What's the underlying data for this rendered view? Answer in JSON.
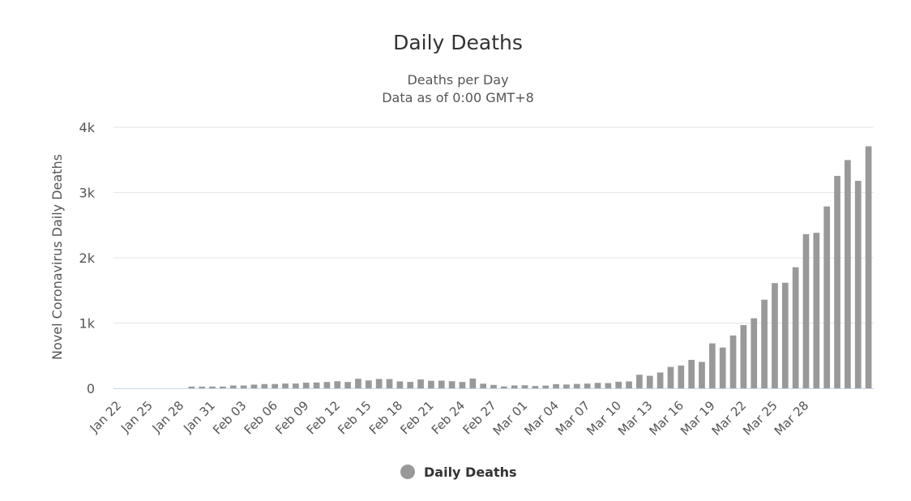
{
  "chart_data": {
    "type": "bar",
    "title": "Daily Deaths",
    "subtitle": [
      "Deaths per Day",
      "Data as of 0:00 GMT+8"
    ],
    "ylabel": "Novel Coronavirus Daily Deaths",
    "xlabel": "",
    "ylim": [
      0,
      4000
    ],
    "yticks": [
      0,
      1000,
      2000,
      3000,
      4000
    ],
    "ytick_labels": [
      "0",
      "1k",
      "2k",
      "3k",
      "4k"
    ],
    "grid": true,
    "legend_position": "bottom-center",
    "series": [
      {
        "name": "Daily Deaths",
        "color": "#999999",
        "values": [
          0,
          0,
          0,
          0,
          0,
          0,
          0,
          26,
          26,
          26,
          26,
          43,
          43,
          57,
          65,
          66,
          73,
          73,
          86,
          89,
          97,
          108,
          97,
          146,
          121,
          143,
          142,
          106,
          98,
          136,
          115,
          118,
          109,
          97,
          150,
          71,
          52,
          29,
          44,
          47,
          35,
          42,
          64,
          58,
          67,
          72,
          84,
          80,
          101,
          106,
          208,
          192,
          243,
          328,
          349,
          436,
          405,
          689,
          625,
          810,
          970,
          1073,
          1358,
          1612,
          1618,
          1855,
          2362,
          2383,
          2787,
          3255,
          3498,
          3179,
          3709
        ]
      }
    ],
    "categories": [
      "Jan 22",
      "Jan 23",
      "Jan 24",
      "Jan 25",
      "Jan 26",
      "Jan 27",
      "Jan 28",
      "Jan 29",
      "Jan 30",
      "Jan 31",
      "Feb 01",
      "Feb 02",
      "Feb 03",
      "Feb 04",
      "Feb 05",
      "Feb 06",
      "Feb 07",
      "Feb 08",
      "Feb 09",
      "Feb 10",
      "Feb 11",
      "Feb 12",
      "Feb 13",
      "Feb 14",
      "Feb 15",
      "Feb 16",
      "Feb 17",
      "Feb 18",
      "Feb 19",
      "Feb 20",
      "Feb 21",
      "Feb 22",
      "Feb 23",
      "Feb 24",
      "Feb 25",
      "Feb 26",
      "Feb 27",
      "Feb 28",
      "Feb 29",
      "Mar 01",
      "Mar 02",
      "Mar 03",
      "Mar 04",
      "Mar 05",
      "Mar 06",
      "Mar 07",
      "Mar 08",
      "Mar 09",
      "Mar 10",
      "Mar 11",
      "Mar 12",
      "Mar 13",
      "Mar 14",
      "Mar 15",
      "Mar 16",
      "Mar 17",
      "Mar 18",
      "Mar 19",
      "Mar 20",
      "Mar 21",
      "Mar 22",
      "Mar 23",
      "Mar 24",
      "Mar 25",
      "Mar 26",
      "Mar 27",
      "Mar 28",
      "Mar 29",
      "Mar 30",
      "Mar 31",
      "Apr 01",
      "Apr 02",
      "Apr 03"
    ],
    "xtick_labels": [
      "Jan 22",
      "Jan 25",
      "Jan 28",
      "Jan 31",
      "Feb 03",
      "Feb 06",
      "Feb 09",
      "Feb 12",
      "Feb 15",
      "Feb 18",
      "Feb 21",
      "Feb 24",
      "Feb 27",
      "Mar 01",
      "Mar 04",
      "Mar 07",
      "Mar 10",
      "Mar 13",
      "Mar 16",
      "Mar 19",
      "Mar 22",
      "Mar 25",
      "Mar 28"
    ],
    "xtick_every": 3
  }
}
